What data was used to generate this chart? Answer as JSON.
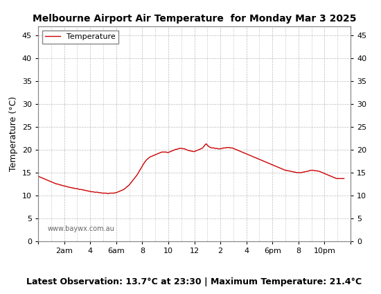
{
  "title": "Melbourne Airport Air Temperature  for Monday Mar 3 2025",
  "ylabel": "Temperature (°C)",
  "xlabel_bottom": "Latest Observation: 13.7°C at 23:30 | Maximum Temperature: 21.4°C",
  "watermark": "www.baywx.com.au",
  "legend_label": "Temperature",
  "line_color": "#cc0000",
  "ylim": [
    0,
    47
  ],
  "yticks": [
    0,
    5,
    10,
    15,
    20,
    25,
    30,
    35,
    40,
    45
  ],
  "background_color": "#ffffff",
  "grid_color": "#aaaaaa",
  "time_hours": [
    0.0,
    0.08,
    0.17,
    0.25,
    0.33,
    0.42,
    0.5,
    0.58,
    0.67,
    0.75,
    0.83,
    0.92,
    1.0,
    1.08,
    1.17,
    1.25,
    1.33,
    1.42,
    1.5,
    1.58,
    1.67,
    1.75,
    1.83,
    1.92,
    2.0,
    2.08,
    2.17,
    2.25,
    2.33,
    2.42,
    2.5,
    2.58,
    2.67,
    2.75,
    2.83,
    2.92,
    3.0,
    3.08,
    3.17,
    3.25,
    3.33,
    3.42,
    3.5,
    3.58,
    3.67,
    3.75,
    3.83,
    3.92,
    4.0,
    4.08,
    4.17,
    4.25,
    4.33,
    4.42,
    4.5,
    4.58,
    4.67,
    4.75,
    4.83,
    4.92,
    5.0,
    5.08,
    5.17,
    5.25,
    5.33,
    5.42,
    5.5,
    5.58,
    5.67,
    5.75,
    5.83,
    5.92,
    6.0,
    6.08,
    6.17,
    6.25,
    6.33,
    6.42,
    6.5,
    6.58,
    6.67,
    6.75,
    6.83,
    6.92,
    7.0,
    7.08,
    7.17,
    7.25,
    7.33,
    7.42,
    7.5,
    7.58,
    7.67,
    7.75,
    7.83,
    7.92,
    8.0,
    8.08,
    8.17,
    8.25,
    8.33,
    8.42,
    8.5,
    8.58,
    8.67,
    8.75,
    8.83,
    8.92,
    9.0,
    9.08,
    9.17,
    9.25,
    9.33,
    9.42,
    9.5,
    9.58,
    9.67,
    9.75,
    9.83,
    9.92,
    10.0,
    10.08,
    10.17,
    10.25,
    10.33,
    10.42,
    10.5,
    10.58,
    10.67,
    10.75,
    10.83,
    10.92,
    11.0,
    11.08,
    11.17,
    11.25,
    11.33,
    11.42,
    11.5,
    11.58,
    11.67,
    11.75,
    11.83,
    11.92,
    12.0,
    12.08,
    12.17,
    12.25,
    12.33,
    12.42,
    12.5,
    12.58,
    12.67,
    12.75,
    12.83,
    12.92,
    13.0,
    13.08,
    13.17,
    13.25,
    13.33,
    13.42,
    13.5,
    13.58,
    13.67,
    13.75,
    13.83,
    13.92,
    14.0,
    14.08,
    14.17,
    14.25,
    14.33,
    14.42,
    14.5,
    14.58,
    14.67,
    14.75,
    14.83,
    14.92,
    15.0,
    15.08,
    15.17,
    15.25,
    15.33,
    15.42,
    15.5,
    15.58,
    15.67,
    15.75,
    15.83,
    15.92,
    16.0,
    16.08,
    16.17,
    16.25,
    16.33,
    16.42,
    16.5,
    16.58,
    16.67,
    16.75,
    16.83,
    16.92,
    17.0,
    17.08,
    17.17,
    17.25,
    17.33,
    17.42,
    17.5,
    17.58,
    17.67,
    17.75,
    17.83,
    17.92,
    18.0,
    18.08,
    18.17,
    18.25,
    18.33,
    18.42,
    18.5,
    18.58,
    18.67,
    18.75,
    18.83,
    18.92,
    19.0,
    19.08,
    19.17,
    19.25,
    19.33,
    19.42,
    19.5,
    19.58,
    19.67,
    19.75,
    19.83,
    19.92,
    20.0,
    20.08,
    20.17,
    20.25,
    20.33,
    20.42,
    20.5,
    20.58,
    20.67,
    20.75,
    20.83,
    20.92,
    21.0,
    21.08,
    21.17,
    21.25,
    21.33,
    21.42,
    21.5,
    21.58,
    21.67,
    21.75,
    21.83,
    21.92,
    22.0,
    22.08,
    22.17,
    22.25,
    22.33,
    22.42,
    22.5,
    22.58,
    22.67,
    22.75,
    22.83,
    22.92,
    23.0,
    23.08,
    23.17,
    23.25,
    23.33,
    23.42,
    23.5
  ],
  "temperatures": [
    14.2,
    14.1,
    14.0,
    13.9,
    13.8,
    13.7,
    13.6,
    13.5,
    13.4,
    13.3,
    13.2,
    13.1,
    13.0,
    12.9,
    12.8,
    12.7,
    12.6,
    12.5,
    12.5,
    12.4,
    12.3,
    12.3,
    12.2,
    12.1,
    12.1,
    12.0,
    12.0,
    11.9,
    11.8,
    11.8,
    11.7,
    11.7,
    11.6,
    11.6,
    11.5,
    11.5,
    11.5,
    11.4,
    11.3,
    11.3,
    11.3,
    11.2,
    11.2,
    11.1,
    11.1,
    11.0,
    11.0,
    10.9,
    10.9,
    10.8,
    10.8,
    10.8,
    10.7,
    10.7,
    10.7,
    10.7,
    10.6,
    10.6,
    10.6,
    10.5,
    10.5,
    10.5,
    10.5,
    10.5,
    10.4,
    10.4,
    10.5,
    10.5,
    10.5,
    10.5,
    10.5,
    10.6,
    10.6,
    10.7,
    10.8,
    10.9,
    11.0,
    11.1,
    11.2,
    11.3,
    11.5,
    11.7,
    11.9,
    12.1,
    12.3,
    12.6,
    12.9,
    13.2,
    13.5,
    13.8,
    14.1,
    14.4,
    14.8,
    15.2,
    15.6,
    16.0,
    16.4,
    16.8,
    17.2,
    17.5,
    17.8,
    18.0,
    18.2,
    18.4,
    18.5,
    18.6,
    18.7,
    18.8,
    18.9,
    19.0,
    19.1,
    19.2,
    19.3,
    19.4,
    19.5,
    19.5,
    19.5,
    19.5,
    19.5,
    19.4,
    19.4,
    19.5,
    19.6,
    19.7,
    19.8,
    19.9,
    20.0,
    20.1,
    20.1,
    20.2,
    20.3,
    20.3,
    20.3,
    20.3,
    20.2,
    20.2,
    20.1,
    20.0,
    19.9,
    19.8,
    19.8,
    19.7,
    19.7,
    19.6,
    19.6,
    19.7,
    19.8,
    19.9,
    20.0,
    20.1,
    20.2,
    20.3,
    20.5,
    20.8,
    21.1,
    21.3,
    21.0,
    20.8,
    20.6,
    20.5,
    20.4,
    20.4,
    20.4,
    20.3,
    20.3,
    20.3,
    20.2,
    20.2,
    20.2,
    20.3,
    20.3,
    20.4,
    20.4,
    20.4,
    20.5,
    20.5,
    20.5,
    20.4,
    20.4,
    20.4,
    20.3,
    20.2,
    20.1,
    20.0,
    19.9,
    19.8,
    19.7,
    19.6,
    19.5,
    19.4,
    19.3,
    19.2,
    19.1,
    19.0,
    18.9,
    18.8,
    18.7,
    18.6,
    18.5,
    18.4,
    18.3,
    18.2,
    18.1,
    18.0,
    17.9,
    17.8,
    17.7,
    17.6,
    17.5,
    17.4,
    17.3,
    17.2,
    17.1,
    17.0,
    16.9,
    16.8,
    16.7,
    16.6,
    16.5,
    16.4,
    16.3,
    16.2,
    16.1,
    16.0,
    15.9,
    15.8,
    15.7,
    15.6,
    15.5,
    15.5,
    15.4,
    15.4,
    15.3,
    15.3,
    15.2,
    15.2,
    15.1,
    15.1,
    15.0,
    15.0,
    15.0,
    15.0,
    15.0,
    15.0,
    15.1,
    15.1,
    15.2,
    15.2,
    15.3,
    15.3,
    15.4,
    15.5,
    15.5,
    15.5,
    15.5,
    15.4,
    15.4,
    15.4,
    15.3,
    15.3,
    15.2,
    15.1,
    15.0,
    14.9,
    14.8,
    14.7,
    14.6,
    14.5,
    14.4,
    14.3,
    14.2,
    14.1,
    14.0,
    13.9,
    13.8,
    13.7,
    13.7,
    13.7,
    13.7,
    13.7,
    13.7,
    13.7,
    13.7
  ]
}
